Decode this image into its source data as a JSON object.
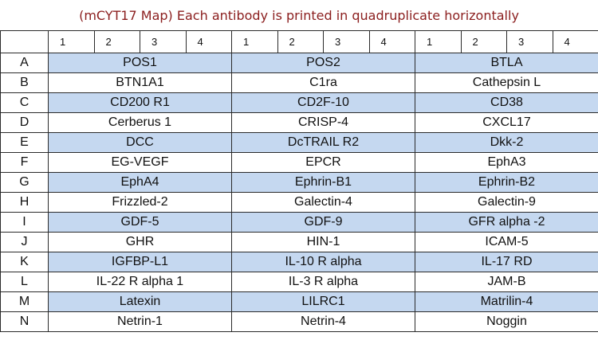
{
  "title": "(mCYT17 Map) Each antibody is printed in quadruplicate horizontally",
  "columns": [
    "1",
    "2",
    "3",
    "4",
    "1",
    "2",
    "3",
    "4",
    "1",
    "2",
    "3",
    "4"
  ],
  "colors": {
    "shade": "#c5d8f0",
    "title": "#8b1e1e",
    "border": "#2a2a2a"
  },
  "rows": [
    {
      "label": "A",
      "antibodies": [
        "POS1",
        "POS2",
        "BTLA"
      ]
    },
    {
      "label": "B",
      "antibodies": [
        "BTN1A1",
        "C1ra",
        "Cathepsin L"
      ]
    },
    {
      "label": "C",
      "antibodies": [
        "CD200 R1",
        "CD2F-10",
        "CD38"
      ]
    },
    {
      "label": "D",
      "antibodies": [
        "Cerberus 1",
        "CRISP-4",
        "CXCL17"
      ]
    },
    {
      "label": "E",
      "antibodies": [
        "DCC",
        "DcTRAIL R2",
        "Dkk-2"
      ]
    },
    {
      "label": "F",
      "antibodies": [
        "EG-VEGF",
        "EPCR",
        "EphA3"
      ]
    },
    {
      "label": "G",
      "antibodies": [
        "EphA4",
        "Ephrin-B1",
        "Ephrin-B2"
      ]
    },
    {
      "label": "H",
      "antibodies": [
        "Frizzled-2",
        "Galectin-4",
        "Galectin-9"
      ]
    },
    {
      "label": "I",
      "antibodies": [
        "GDF-5",
        "GDF-9",
        "GFR alpha -2"
      ]
    },
    {
      "label": "J",
      "antibodies": [
        "GHR",
        "HIN-1",
        "ICAM-5"
      ]
    },
    {
      "label": "K",
      "antibodies": [
        "IGFBP-L1",
        "IL-10 R alpha",
        "IL-17 RD"
      ]
    },
    {
      "label": "L",
      "antibodies": [
        "IL-22 R alpha 1",
        "IL-3 R alpha",
        "JAM-B"
      ]
    },
    {
      "label": "M",
      "antibodies": [
        "Latexin",
        "LILRC1",
        "Matrilin-4"
      ]
    },
    {
      "label": "N",
      "antibodies": [
        "Netrin-1",
        "Netrin-4",
        "Noggin"
      ]
    }
  ]
}
